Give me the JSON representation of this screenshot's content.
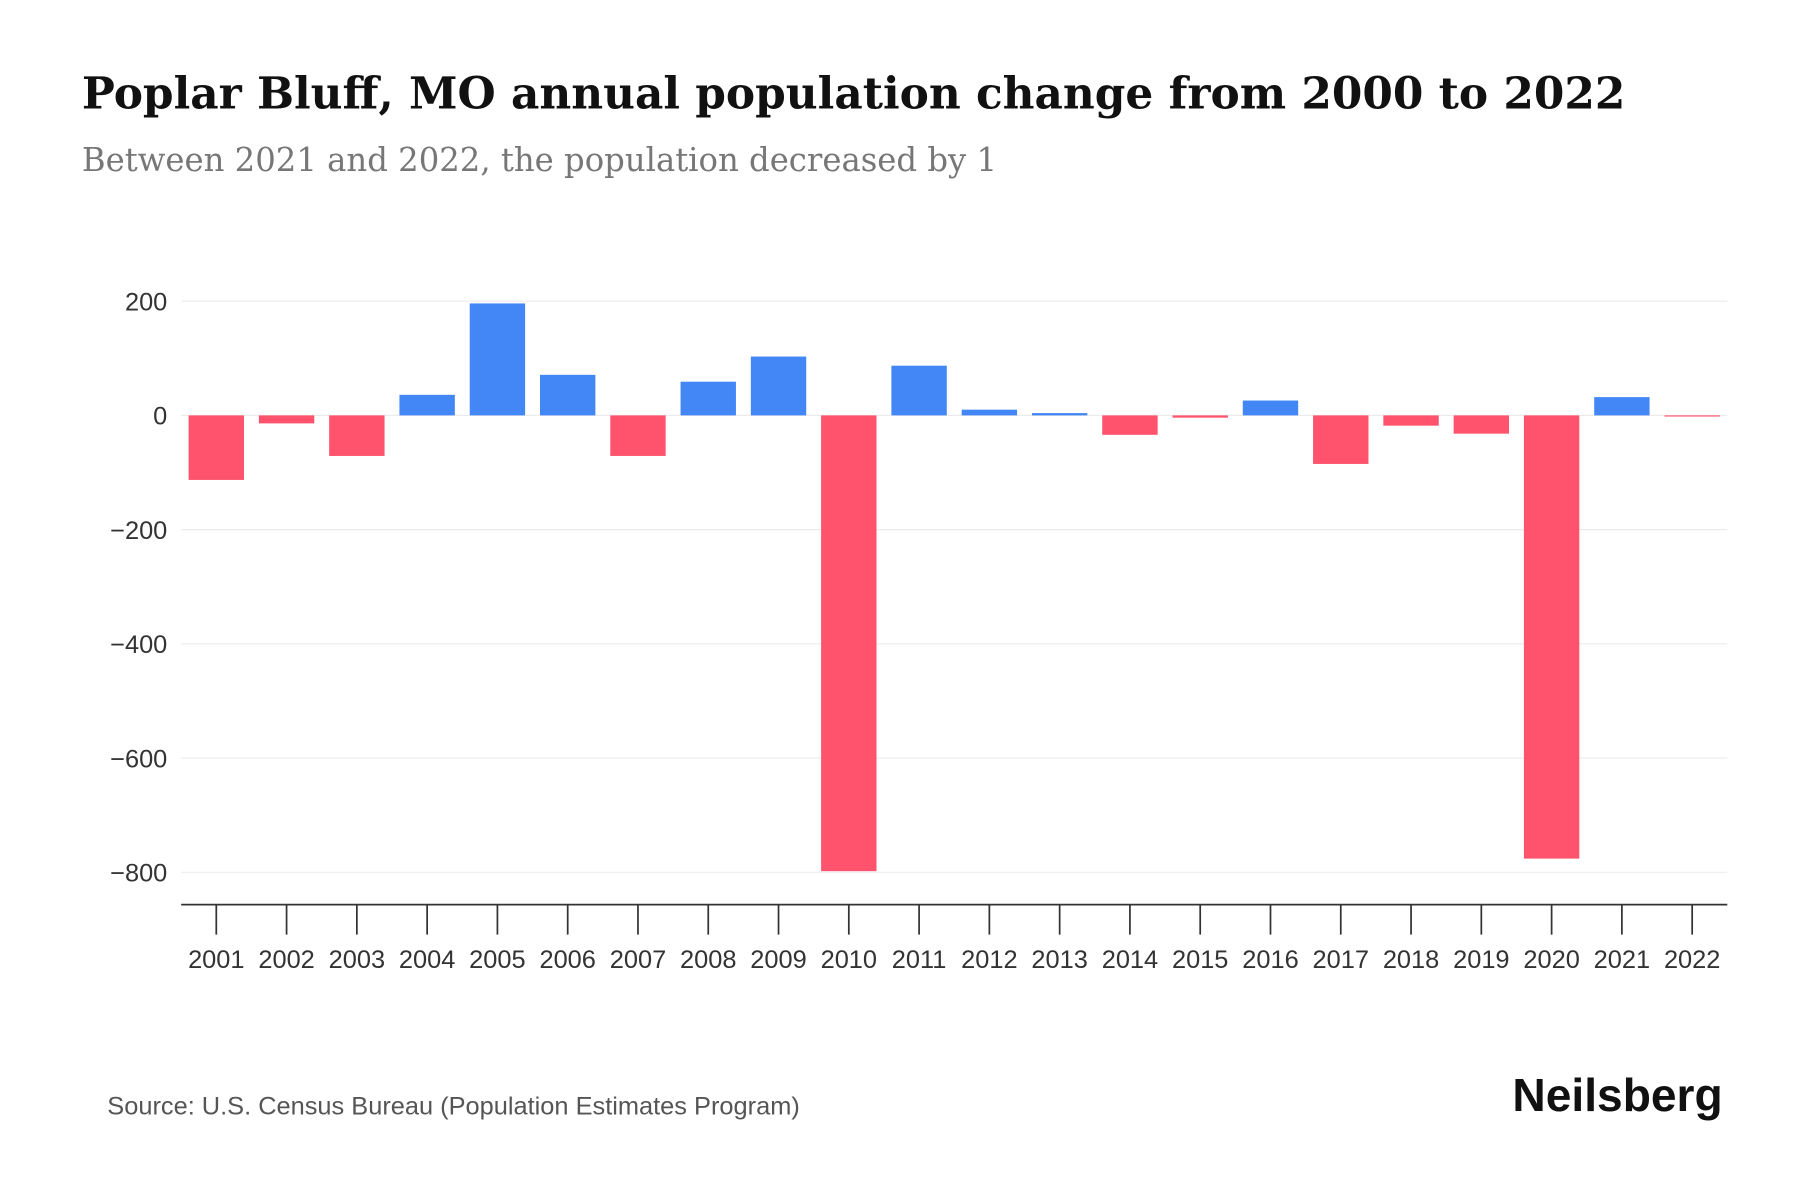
{
  "chart_data": {
    "type": "bar",
    "title": "Poplar Bluff, MO annual population change from 2000 to 2022",
    "subtitle": "Between 2021 and 2022, the population decreased by 1",
    "xlabel": "",
    "ylabel": "",
    "categories": [
      "2001",
      "2002",
      "2003",
      "2004",
      "2005",
      "2006",
      "2007",
      "2008",
      "2009",
      "2010",
      "2011",
      "2012",
      "2013",
      "2014",
      "2015",
      "2016",
      "2017",
      "2018",
      "2019",
      "2020",
      "2021",
      "2022"
    ],
    "values": [
      -113,
      -14,
      -71,
      36,
      196,
      71,
      -71,
      59,
      103,
      -798,
      87,
      10,
      4,
      -34,
      -4,
      26,
      -85,
      -18,
      -32,
      -776,
      32,
      -1
    ],
    "ylim": [
      -860,
      200
    ],
    "yticks": [
      200,
      0,
      -200,
      -400,
      -600,
      -800
    ],
    "ytick_labels": [
      "200",
      "0",
      "−200",
      "−400",
      "−600",
      "−800"
    ],
    "grid": true,
    "colors": {
      "positive": "#4287f5",
      "negative": "#ff526c"
    }
  },
  "footer": {
    "source": "Source: U.S. Census Bureau (Population Estimates Program)",
    "brand": "Neilsberg"
  }
}
